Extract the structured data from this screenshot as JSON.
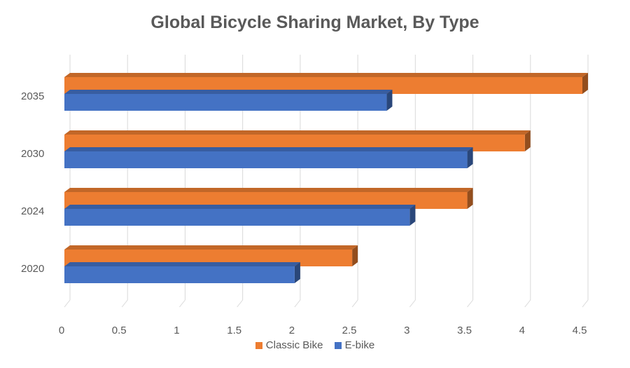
{
  "chart_data": {
    "type": "bar",
    "orientation": "horizontal",
    "title": "Global Bicycle Sharing Market, By Type",
    "categories": [
      "2020",
      "2024",
      "2030",
      "2035"
    ],
    "series": [
      {
        "name": "Classic Bike",
        "color": "#ED7D31",
        "values": [
          2.5,
          3.5,
          4.0,
          4.5
        ]
      },
      {
        "name": "E-bike",
        "color": "#4472C4",
        "values": [
          2.0,
          3.0,
          3.5,
          2.8
        ]
      }
    ],
    "xlim": [
      0,
      4.5
    ],
    "xticks": [
      "0",
      "0.5",
      "1",
      "1.5",
      "2",
      "2.5",
      "3",
      "3.5",
      "4",
      "4.5"
    ],
    "grid": true,
    "legend_position": "bottom"
  }
}
